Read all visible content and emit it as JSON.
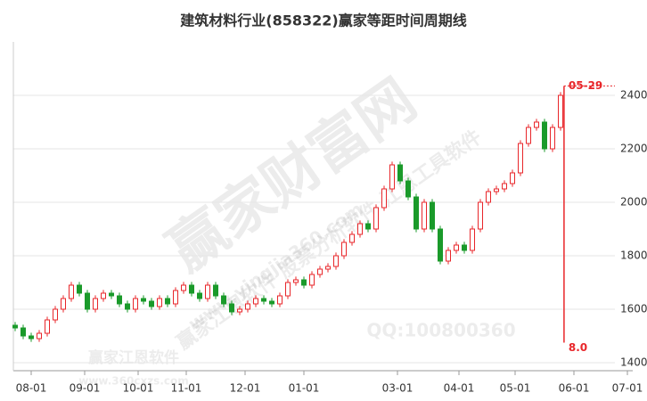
{
  "chart_data": {
    "type": "candlestick",
    "title": "建筑材料行业(858322)赢家等距时间周期线",
    "x": [
      0,
      3,
      6,
      9,
      12,
      15,
      18,
      21,
      24,
      27,
      30,
      33,
      36,
      39,
      42,
      45,
      48,
      51,
      54,
      57,
      60,
      63,
      66,
      69,
      72,
      75,
      78,
      81,
      84,
      87,
      90,
      93,
      96,
      99,
      102,
      105,
      108,
      111,
      114,
      117,
      120,
      123,
      126,
      129,
      132,
      135,
      138,
      141,
      144,
      147,
      150,
      153,
      156,
      159,
      162,
      165,
      168,
      171,
      174,
      177,
      180,
      183,
      186,
      189,
      192,
      195,
      198,
      201,
      204
    ],
    "open": [
      1540,
      1530,
      1500,
      1490,
      1510,
      1560,
      1600,
      1640,
      1690,
      1660,
      1600,
      1640,
      1660,
      1650,
      1620,
      1600,
      1640,
      1630,
      1610,
      1640,
      1620,
      1670,
      1690,
      1660,
      1640,
      1690,
      1650,
      1620,
      1590,
      1600,
      1620,
      1640,
      1630,
      1620,
      1650,
      1700,
      1710,
      1690,
      1730,
      1750,
      1760,
      1800,
      1850,
      1880,
      1920,
      1900,
      1980,
      2050,
      2140,
      2080,
      2020,
      1900,
      2000,
      1900,
      1780,
      1820,
      1840,
      1820,
      1900,
      2000,
      2040,
      2050,
      2070,
      2110,
      2220,
      2280,
      2300,
      2200,
      2280
    ],
    "high": [
      1552,
      1542,
      1512,
      1522,
      1572,
      1612,
      1652,
      1702,
      1702,
      1672,
      1652,
      1672,
      1672,
      1662,
      1632,
      1652,
      1652,
      1642,
      1652,
      1652,
      1682,
      1702,
      1702,
      1672,
      1702,
      1702,
      1662,
      1632,
      1612,
      1632,
      1652,
      1652,
      1642,
      1662,
      1712,
      1722,
      1722,
      1742,
      1762,
      1772,
      1812,
      1862,
      1892,
      1932,
      1932,
      1992,
      2062,
      2152,
      2152,
      2092,
      2032,
      2012,
      2012,
      1912,
      1832,
      1852,
      1852,
      1912,
      2012,
      2052,
      2062,
      2082,
      2122,
      2232,
      2292,
      2312,
      2312,
      2292,
      2412
    ],
    "low": [
      1518,
      1488,
      1478,
      1478,
      1498,
      1548,
      1588,
      1628,
      1648,
      1588,
      1588,
      1628,
      1638,
      1608,
      1588,
      1588,
      1618,
      1598,
      1598,
      1608,
      1608,
      1658,
      1648,
      1628,
      1628,
      1638,
      1608,
      1578,
      1578,
      1588,
      1608,
      1618,
      1608,
      1608,
      1638,
      1688,
      1678,
      1678,
      1718,
      1738,
      1748,
      1788,
      1838,
      1868,
      1888,
      1888,
      1968,
      2038,
      2068,
      2008,
      1888,
      1888,
      1888,
      1768,
      1768,
      1808,
      1808,
      1808,
      1888,
      1988,
      2028,
      2038,
      2058,
      2098,
      2208,
      2268,
      2188,
      2188,
      2268
    ],
    "close": [
      1530,
      1500,
      1490,
      1510,
      1560,
      1600,
      1640,
      1690,
      1660,
      1600,
      1640,
      1660,
      1650,
      1620,
      1600,
      1640,
      1630,
      1610,
      1640,
      1620,
      1670,
      1690,
      1660,
      1640,
      1690,
      1650,
      1620,
      1590,
      1600,
      1620,
      1640,
      1630,
      1620,
      1650,
      1700,
      1710,
      1690,
      1730,
      1750,
      1760,
      1800,
      1850,
      1880,
      1920,
      1900,
      1980,
      2050,
      2140,
      2080,
      2020,
      1900,
      2000,
      1900,
      1780,
      1820,
      1840,
      1820,
      1900,
      2000,
      2040,
      2050,
      2070,
      2110,
      2220,
      2280,
      2300,
      2200,
      2280,
      2400
    ],
    "up_color": "#e8262a",
    "down_color": "#1a9a2a",
    "xlim": [
      0,
      231
    ],
    "xticks": [
      {
        "value": 6,
        "label": "08-01"
      },
      {
        "value": 26,
        "label": "09-01"
      },
      {
        "value": 46,
        "label": "10-01"
      },
      {
        "value": 64,
        "label": "11-01"
      },
      {
        "value": 86,
        "label": "12-01"
      },
      {
        "value": 108,
        "label": "01-01"
      },
      {
        "value": 143,
        "label": "03-01"
      },
      {
        "value": 166,
        "label": "04-01"
      },
      {
        "value": 187,
        "label": "05-01"
      },
      {
        "value": 209,
        "label": "06-01"
      },
      {
        "value": 229,
        "label": "07-01"
      }
    ],
    "ylim": [
      1370,
      2600
    ],
    "yticks": [
      1400,
      1600,
      1800,
      2000,
      2200,
      2400
    ],
    "grid": true,
    "marker": {
      "x": 205.3,
      "top": 2435,
      "bottom": 1475,
      "label": "05-29",
      "bottom_label": "8.0",
      "color": "#e8262a"
    },
    "watermarks": [
      "赢家财富网",
      "赢家江恩软件 股票分析软件 江恩工具软件",
      "www.yingjia360.com",
      "QQ:100800360",
      "赢家江恩软件",
      "www.360cxzs.com"
    ]
  }
}
